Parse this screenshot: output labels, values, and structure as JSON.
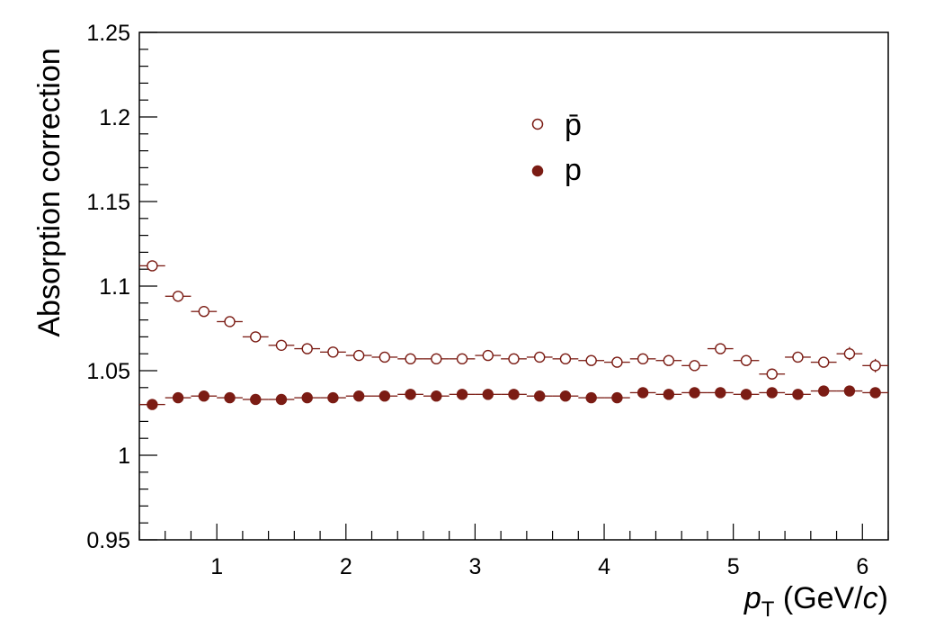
{
  "chart_data": {
    "type": "scatter",
    "title": "",
    "xlabel": {
      "var": "p",
      "sub": "T",
      "unit_pre": " (GeV/",
      "unit_var": "c",
      "unit_post": ")"
    },
    "ylabel": "Absorption correction",
    "xlim": [
      0.4,
      6.2
    ],
    "ylim": [
      0.95,
      1.25
    ],
    "x_ticks": [
      1,
      2,
      3,
      4,
      5,
      6
    ],
    "x_tick_labels": [
      "1",
      "2",
      "3",
      "4",
      "5",
      "6"
    ],
    "y_ticks": [
      0.95,
      1,
      1.05,
      1.1,
      1.15,
      1.2,
      1.25
    ],
    "y_tick_labels": [
      "0.95",
      "1",
      "1.05",
      "1.1",
      "1.15",
      "1.2",
      "1.25"
    ],
    "grid": false,
    "legend_position": "top-center",
    "x": [
      0.5,
      0.7,
      0.9,
      1.1,
      1.3,
      1.5,
      1.7,
      1.9,
      2.1,
      2.3,
      2.5,
      2.7,
      2.9,
      3.1,
      3.3,
      3.5,
      3.7,
      3.9,
      4.1,
      4.3,
      4.5,
      4.7,
      4.9,
      5.1,
      5.3,
      5.5,
      5.7,
      5.9,
      6.1
    ],
    "x_half_width": 0.1,
    "series": [
      {
        "name": "p̄",
        "marker": "open-circle",
        "color": "#7b1c14",
        "values": [
          1.112,
          1.094,
          1.085,
          1.079,
          1.07,
          1.065,
          1.063,
          1.061,
          1.059,
          1.058,
          1.057,
          1.057,
          1.057,
          1.059,
          1.057,
          1.058,
          1.057,
          1.056,
          1.055,
          1.057,
          1.056,
          1.053,
          1.063,
          1.056,
          1.048,
          1.058,
          1.055,
          1.06,
          1.053
        ],
        "y_err": [
          0.001,
          0.001,
          0.001,
          0.001,
          0.001,
          0.001,
          0.001,
          0.001,
          0.001,
          0.001,
          0.001,
          0.001,
          0.001,
          0.001,
          0.001,
          0.001,
          0.001,
          0.001,
          0.001,
          0.001,
          0.001,
          0.001,
          0.002,
          0.002,
          0.002,
          0.003,
          0.003,
          0.004,
          0.004
        ]
      },
      {
        "name": "p",
        "marker": "filled-circle",
        "color": "#7b1c14",
        "values": [
          1.03,
          1.034,
          1.035,
          1.034,
          1.033,
          1.033,
          1.034,
          1.034,
          1.035,
          1.035,
          1.036,
          1.035,
          1.036,
          1.036,
          1.036,
          1.035,
          1.035,
          1.034,
          1.034,
          1.037,
          1.036,
          1.037,
          1.037,
          1.036,
          1.037,
          1.036,
          1.038,
          1.038,
          1.037
        ],
        "y_err": [
          0.001,
          0.001,
          0.001,
          0.001,
          0.001,
          0.001,
          0.001,
          0.001,
          0.001,
          0.001,
          0.001,
          0.001,
          0.001,
          0.001,
          0.001,
          0.001,
          0.001,
          0.001,
          0.001,
          0.001,
          0.001,
          0.001,
          0.001,
          0.001,
          0.001,
          0.002,
          0.002,
          0.002,
          0.003
        ]
      }
    ]
  }
}
